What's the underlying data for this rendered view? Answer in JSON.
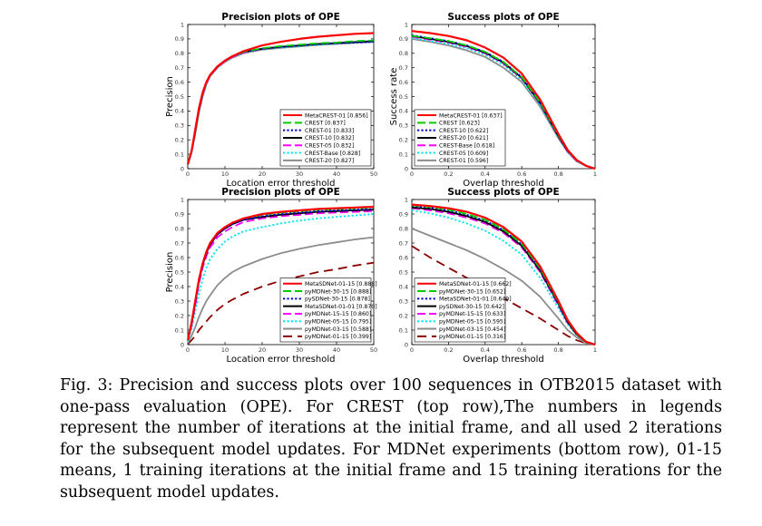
{
  "caption": "Fig. 3: Precision and success plots over 100 sequences in OTB2015 dataset with one-pass evaluation (OPE). For CREST (top row),The numbers in legends represent the number of iterations at the initial frame, and all used 2 iterations for the subsequent model updates. For MDNet experiments (bottom row), 01-15 means, 1 training iterations at the initial frame and 15 training iterations for the subsequent model updates.",
  "chart_data": [
    {
      "id": "tl",
      "type": "line",
      "title": "Precision plots of OPE",
      "xlabel": "Location error threshold",
      "ylabel": "Precision",
      "xlim": [
        0,
        50
      ],
      "ylim": [
        0,
        1
      ],
      "xticks": [
        0,
        10,
        20,
        30,
        40,
        50
      ],
      "yticks": [
        0,
        0.1,
        0.2,
        0.3,
        0.4,
        0.5,
        0.6,
        0.7,
        0.8,
        0.9,
        1
      ],
      "grid": false,
      "legend_position": "bottom-right",
      "x": [
        0,
        1,
        2,
        3,
        4,
        5,
        6,
        8,
        10,
        12,
        15,
        20,
        25,
        30,
        35,
        40,
        45,
        50
      ],
      "series": [
        {
          "name": "MetaCREST-01 [0.856]",
          "color": "#ff0000",
          "dash": "solid",
          "values": [
            0.03,
            0.12,
            0.27,
            0.42,
            0.53,
            0.6,
            0.65,
            0.71,
            0.75,
            0.78,
            0.815,
            0.855,
            0.88,
            0.9,
            0.915,
            0.925,
            0.935,
            0.94
          ]
        },
        {
          "name": "CREST [0.837]",
          "color": "#00cc00",
          "dash": "dashed",
          "values": [
            0.03,
            0.12,
            0.26,
            0.41,
            0.52,
            0.6,
            0.65,
            0.71,
            0.75,
            0.78,
            0.81,
            0.835,
            0.85,
            0.86,
            0.87,
            0.875,
            0.885,
            0.89
          ]
        },
        {
          "name": "CREST-01 [0.833]",
          "color": "#0000cc",
          "dash": "dotted",
          "values": [
            0.03,
            0.12,
            0.26,
            0.41,
            0.52,
            0.6,
            0.65,
            0.71,
            0.75,
            0.78,
            0.81,
            0.832,
            0.845,
            0.855,
            0.865,
            0.87,
            0.875,
            0.88
          ]
        },
        {
          "name": "CREST-10 [0.832]",
          "color": "#000000",
          "dash": "solid",
          "values": [
            0.03,
            0.12,
            0.26,
            0.41,
            0.52,
            0.6,
            0.65,
            0.71,
            0.75,
            0.78,
            0.81,
            0.832,
            0.845,
            0.855,
            0.865,
            0.872,
            0.878,
            0.885
          ]
        },
        {
          "name": "CREST-05 [0.832]",
          "color": "#ff00ff",
          "dash": "dashed",
          "values": [
            0.03,
            0.11,
            0.25,
            0.4,
            0.51,
            0.59,
            0.645,
            0.705,
            0.745,
            0.775,
            0.805,
            0.83,
            0.845,
            0.855,
            0.865,
            0.872,
            0.878,
            0.885
          ]
        },
        {
          "name": "CREST-Base [0.828]",
          "color": "#00e5ee",
          "dash": "dotted",
          "values": [
            0.03,
            0.11,
            0.25,
            0.4,
            0.51,
            0.59,
            0.645,
            0.705,
            0.745,
            0.775,
            0.805,
            0.828,
            0.84,
            0.85,
            0.86,
            0.868,
            0.875,
            0.88
          ]
        },
        {
          "name": "CREST-20 [0.827]",
          "color": "#8c8c8c",
          "dash": "solid",
          "values": [
            0.03,
            0.11,
            0.24,
            0.39,
            0.5,
            0.585,
            0.64,
            0.7,
            0.74,
            0.77,
            0.8,
            0.825,
            0.838,
            0.848,
            0.858,
            0.865,
            0.872,
            0.878
          ]
        }
      ]
    },
    {
      "id": "tr",
      "type": "line",
      "title": "Success plots of OPE",
      "xlabel": "Overlap threshold",
      "ylabel": "Success rate",
      "xlim": [
        0,
        1
      ],
      "ylim": [
        0,
        1
      ],
      "xticks": [
        0,
        0.2,
        0.4,
        0.6,
        0.8,
        1
      ],
      "yticks": [
        0,
        0.1,
        0.2,
        0.3,
        0.4,
        0.5,
        0.6,
        0.7,
        0.8,
        0.9,
        1
      ],
      "grid": false,
      "legend_position": "bottom-left",
      "x": [
        0,
        0.1,
        0.2,
        0.3,
        0.4,
        0.5,
        0.6,
        0.7,
        0.8,
        0.85,
        0.9,
        0.95,
        1
      ],
      "series": [
        {
          "name": "MetaCREST-01 [0.637]",
          "color": "#ff0000",
          "dash": "solid",
          "values": [
            0.955,
            0.94,
            0.92,
            0.89,
            0.84,
            0.77,
            0.66,
            0.48,
            0.24,
            0.13,
            0.06,
            0.02,
            0.0
          ]
        },
        {
          "name": "CREST [0.623]",
          "color": "#00cc00",
          "dash": "dashed",
          "values": [
            0.92,
            0.905,
            0.885,
            0.855,
            0.81,
            0.74,
            0.635,
            0.46,
            0.23,
            0.13,
            0.06,
            0.02,
            0.0
          ]
        },
        {
          "name": "CREST-10 [0.622]",
          "color": "#0000cc",
          "dash": "dotted",
          "values": [
            0.925,
            0.905,
            0.885,
            0.855,
            0.81,
            0.74,
            0.635,
            0.46,
            0.23,
            0.13,
            0.06,
            0.02,
            0.0
          ]
        },
        {
          "name": "CREST-20 [0.621]",
          "color": "#000000",
          "dash": "solid",
          "values": [
            0.92,
            0.9,
            0.88,
            0.85,
            0.805,
            0.735,
            0.63,
            0.455,
            0.225,
            0.125,
            0.06,
            0.02,
            0.0
          ]
        },
        {
          "name": "CREST-Base [0.618]",
          "color": "#ff00ff",
          "dash": "dashed",
          "values": [
            0.915,
            0.895,
            0.875,
            0.845,
            0.8,
            0.73,
            0.625,
            0.45,
            0.22,
            0.12,
            0.055,
            0.02,
            0.0
          ]
        },
        {
          "name": "CREST-05 [0.609]",
          "color": "#00e5ee",
          "dash": "dotted",
          "values": [
            0.905,
            0.885,
            0.865,
            0.835,
            0.79,
            0.72,
            0.615,
            0.44,
            0.215,
            0.12,
            0.055,
            0.02,
            0.0
          ]
        },
        {
          "name": "CREST-01 [0.596]",
          "color": "#8c8c8c",
          "dash": "solid",
          "values": [
            0.9,
            0.88,
            0.855,
            0.82,
            0.775,
            0.7,
            0.6,
            0.43,
            0.21,
            0.115,
            0.05,
            0.02,
            0.0
          ]
        }
      ]
    },
    {
      "id": "bl",
      "type": "line",
      "title": "Precision plots of OPE",
      "xlabel": "Location error threshold",
      "ylabel": "Precision",
      "xlim": [
        0,
        50
      ],
      "ylim": [
        0,
        1
      ],
      "xticks": [
        0,
        10,
        20,
        30,
        40,
        50
      ],
      "yticks": [
        0,
        0.1,
        0.2,
        0.3,
        0.4,
        0.5,
        0.6,
        0.7,
        0.8,
        0.9,
        1
      ],
      "grid": false,
      "legend_position": "bottom-right",
      "x": [
        0,
        1,
        2,
        3,
        4,
        5,
        6,
        8,
        10,
        12,
        15,
        20,
        25,
        30,
        35,
        40,
        45,
        50
      ],
      "series": [
        {
          "name": "MetaSDNet-01-15 [0.888]",
          "color": "#ff0000",
          "dash": "solid",
          "values": [
            0.03,
            0.15,
            0.3,
            0.45,
            0.56,
            0.64,
            0.7,
            0.77,
            0.81,
            0.84,
            0.87,
            0.9,
            0.915,
            0.925,
            0.935,
            0.94,
            0.945,
            0.95
          ]
        },
        {
          "name": "pyMDNet-30-15 [0.888]",
          "color": "#00cc00",
          "dash": "dashed",
          "values": [
            0.03,
            0.15,
            0.3,
            0.45,
            0.56,
            0.64,
            0.7,
            0.77,
            0.81,
            0.84,
            0.87,
            0.895,
            0.91,
            0.92,
            0.93,
            0.935,
            0.94,
            0.945
          ]
        },
        {
          "name": "pySDNet-30-15 [0.878]",
          "color": "#0000cc",
          "dash": "dotted",
          "values": [
            0.03,
            0.14,
            0.29,
            0.44,
            0.55,
            0.63,
            0.69,
            0.76,
            0.8,
            0.83,
            0.86,
            0.885,
            0.9,
            0.91,
            0.92,
            0.925,
            0.93,
            0.935
          ]
        },
        {
          "name": "MetaSDNet-01-01 [0.870]",
          "color": "#000000",
          "dash": "solid",
          "values": [
            0.03,
            0.14,
            0.29,
            0.44,
            0.55,
            0.63,
            0.69,
            0.76,
            0.8,
            0.83,
            0.86,
            0.88,
            0.895,
            0.905,
            0.915,
            0.92,
            0.925,
            0.93
          ]
        },
        {
          "name": "pyMDNet-15-15 [0.860]",
          "color": "#ff00ff",
          "dash": "dashed",
          "values": [
            0.03,
            0.13,
            0.27,
            0.42,
            0.53,
            0.61,
            0.67,
            0.74,
            0.78,
            0.81,
            0.845,
            0.87,
            0.885,
            0.895,
            0.905,
            0.91,
            0.915,
            0.92
          ]
        },
        {
          "name": "pyMDNet-05-15 [0.795]",
          "color": "#00e5ee",
          "dash": "dotted",
          "values": [
            0.02,
            0.11,
            0.23,
            0.35,
            0.45,
            0.53,
            0.59,
            0.66,
            0.71,
            0.745,
            0.78,
            0.81,
            0.835,
            0.855,
            0.87,
            0.88,
            0.89,
            0.9
          ]
        },
        {
          "name": "pyMDNet-03-15 [0.588]",
          "color": "#8c8c8c",
          "dash": "solid",
          "values": [
            0.01,
            0.06,
            0.12,
            0.19,
            0.25,
            0.3,
            0.34,
            0.41,
            0.46,
            0.5,
            0.54,
            0.59,
            0.63,
            0.66,
            0.685,
            0.705,
            0.725,
            0.74
          ]
        },
        {
          "name": "pyMDNet-01-15 [0.399]",
          "color": "#8b0000",
          "dash": "longdash",
          "values": [
            0.005,
            0.03,
            0.06,
            0.1,
            0.13,
            0.16,
            0.19,
            0.24,
            0.28,
            0.31,
            0.35,
            0.4,
            0.44,
            0.47,
            0.5,
            0.52,
            0.545,
            0.565
          ]
        }
      ]
    },
    {
      "id": "br",
      "type": "line",
      "title": "Success plots of OPE",
      "xlabel": "Overlap threshold",
      "ylabel": "",
      "xlim": [
        0,
        1
      ],
      "ylim": [
        0,
        1
      ],
      "xticks": [
        0,
        0.2,
        0.4,
        0.6,
        0.8,
        1
      ],
      "yticks": [
        0,
        0.1,
        0.2,
        0.3,
        0.4,
        0.5,
        0.6,
        0.7,
        0.8,
        0.9,
        1
      ],
      "grid": false,
      "legend_position": "bottom-left",
      "x": [
        0,
        0.1,
        0.2,
        0.3,
        0.4,
        0.5,
        0.6,
        0.7,
        0.8,
        0.85,
        0.9,
        0.95,
        1
      ],
      "series": [
        {
          "name": "MetaSDNet-01-15 [0.662]",
          "color": "#ff0000",
          "dash": "solid",
          "values": [
            0.965,
            0.955,
            0.94,
            0.915,
            0.875,
            0.81,
            0.71,
            0.54,
            0.3,
            0.17,
            0.08,
            0.02,
            0.0
          ]
        },
        {
          "name": "pyMDNet-30-15 [0.652]",
          "color": "#00cc00",
          "dash": "dashed",
          "values": [
            0.96,
            0.95,
            0.93,
            0.9,
            0.86,
            0.795,
            0.695,
            0.525,
            0.29,
            0.165,
            0.075,
            0.02,
            0.0
          ]
        },
        {
          "name": "MetaSDNet-01-01 [0.649]",
          "color": "#0000cc",
          "dash": "dotted",
          "values": [
            0.955,
            0.945,
            0.925,
            0.895,
            0.855,
            0.79,
            0.69,
            0.52,
            0.285,
            0.16,
            0.075,
            0.02,
            0.0
          ]
        },
        {
          "name": "pySDNet-30-15 [0.642]",
          "color": "#000000",
          "dash": "solid",
          "values": [
            0.945,
            0.935,
            0.915,
            0.885,
            0.845,
            0.78,
            0.68,
            0.51,
            0.28,
            0.155,
            0.07,
            0.02,
            0.0
          ]
        },
        {
          "name": "pyMDNet-15-15 [0.633]",
          "color": "#ff00ff",
          "dash": "dashed",
          "values": [
            0.94,
            0.925,
            0.905,
            0.875,
            0.835,
            0.77,
            0.67,
            0.5,
            0.27,
            0.15,
            0.07,
            0.02,
            0.0
          ]
        },
        {
          "name": "pyMDNet-05-15 [0.595]",
          "color": "#00e5ee",
          "dash": "dotted",
          "values": [
            0.925,
            0.905,
            0.875,
            0.835,
            0.785,
            0.715,
            0.62,
            0.46,
            0.25,
            0.14,
            0.065,
            0.02,
            0.0
          ]
        },
        {
          "name": "pyMDNet-03-15 [0.454]",
          "color": "#8c8c8c",
          "dash": "solid",
          "values": [
            0.8,
            0.75,
            0.7,
            0.65,
            0.59,
            0.52,
            0.44,
            0.33,
            0.18,
            0.1,
            0.05,
            0.01,
            0.0
          ]
        },
        {
          "name": "pyMDNet-01-15 [0.316]",
          "color": "#8b0000",
          "dash": "longdash",
          "values": [
            0.68,
            0.6,
            0.53,
            0.46,
            0.39,
            0.32,
            0.25,
            0.18,
            0.1,
            0.06,
            0.03,
            0.01,
            0.0
          ]
        }
      ]
    }
  ]
}
